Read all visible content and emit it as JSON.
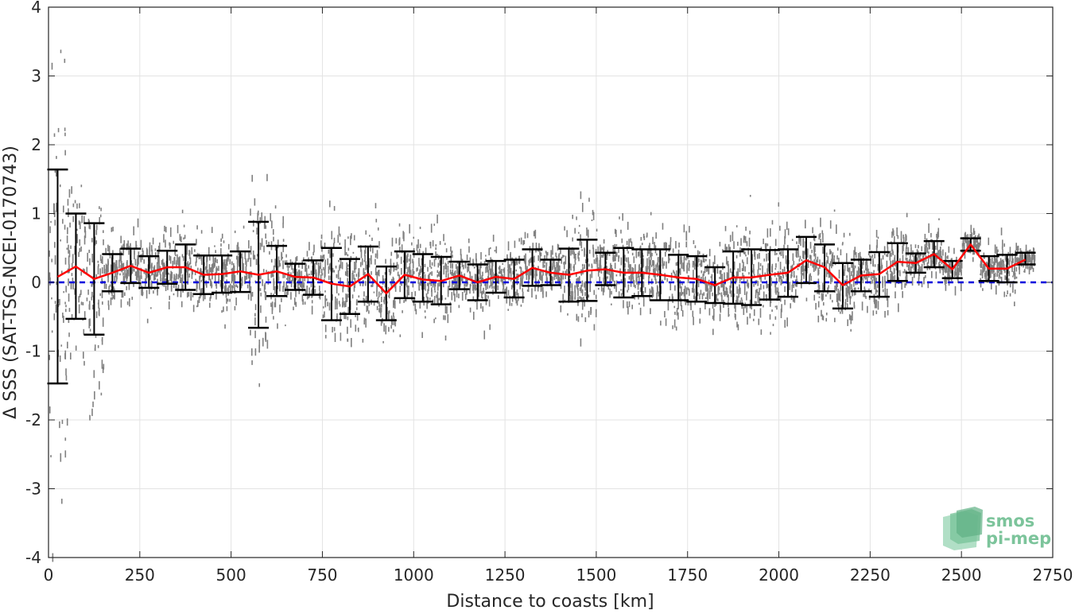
{
  "chart_data": {
    "type": "scatter",
    "xlabel": "Distance to coasts [km]",
    "ylabel": "Δ SSS (SAT-TSG-NCEI-0170743)",
    "xlim": [
      0,
      2750
    ],
    "ylim": [
      -4,
      4
    ],
    "xticks": [
      0,
      250,
      500,
      750,
      1000,
      1250,
      1500,
      1750,
      2000,
      2250,
      2500,
      2750
    ],
    "yticks": [
      -4,
      -3,
      -2,
      -1,
      0,
      1,
      2,
      3,
      4
    ],
    "grid": true,
    "reference_line": {
      "y": 0,
      "color": "#0000dd",
      "style": "dashed"
    },
    "scatter_color": "#808080",
    "mean_color": "#ff0000",
    "errorbar_color": "#000000",
    "bins": [
      {
        "x": 25,
        "mean": 0.08,
        "low": -1.47,
        "high": 1.64
      },
      {
        "x": 75,
        "mean": 0.23,
        "low": -0.53,
        "high": 1.0
      },
      {
        "x": 125,
        "mean": 0.05,
        "low": -0.76,
        "high": 0.86
      },
      {
        "x": 175,
        "mean": 0.14,
        "low": -0.13,
        "high": 0.41
      },
      {
        "x": 225,
        "mean": 0.24,
        "low": -0.01,
        "high": 0.49
      },
      {
        "x": 275,
        "mean": 0.14,
        "low": -0.08,
        "high": 0.38
      },
      {
        "x": 325,
        "mean": 0.22,
        "low": -0.02,
        "high": 0.46
      },
      {
        "x": 375,
        "mean": 0.22,
        "low": -0.11,
        "high": 0.55
      },
      {
        "x": 425,
        "mean": 0.11,
        "low": -0.17,
        "high": 0.39
      },
      {
        "x": 475,
        "mean": 0.12,
        "low": -0.15,
        "high": 0.39
      },
      {
        "x": 525,
        "mean": 0.16,
        "low": -0.14,
        "high": 0.45
      },
      {
        "x": 575,
        "mean": 0.11,
        "low": -0.66,
        "high": 0.88
      },
      {
        "x": 625,
        "mean": 0.16,
        "low": -0.2,
        "high": 0.53
      },
      {
        "x": 675,
        "mean": 0.08,
        "low": -0.11,
        "high": 0.27
      },
      {
        "x": 725,
        "mean": 0.07,
        "low": -0.18,
        "high": 0.32
      },
      {
        "x": 775,
        "mean": -0.02,
        "low": -0.55,
        "high": 0.5
      },
      {
        "x": 825,
        "mean": -0.06,
        "low": -0.46,
        "high": 0.34
      },
      {
        "x": 875,
        "mean": 0.12,
        "low": -0.28,
        "high": 0.52
      },
      {
        "x": 925,
        "mean": -0.16,
        "low": -0.55,
        "high": 0.23
      },
      {
        "x": 975,
        "mean": 0.11,
        "low": -0.23,
        "high": 0.45
      },
      {
        "x": 1025,
        "mean": 0.04,
        "low": -0.28,
        "high": 0.41
      },
      {
        "x": 1075,
        "mean": 0.02,
        "low": -0.32,
        "high": 0.37
      },
      {
        "x": 1125,
        "mean": 0.1,
        "low": -0.1,
        "high": 0.3
      },
      {
        "x": 1175,
        "mean": 0.0,
        "low": -0.26,
        "high": 0.26
      },
      {
        "x": 1225,
        "mean": 0.08,
        "low": -0.15,
        "high": 0.31
      },
      {
        "x": 1275,
        "mean": 0.05,
        "low": -0.22,
        "high": 0.33
      },
      {
        "x": 1325,
        "mean": 0.21,
        "low": -0.05,
        "high": 0.48
      },
      {
        "x": 1375,
        "mean": 0.14,
        "low": -0.04,
        "high": 0.33
      },
      {
        "x": 1425,
        "mean": 0.11,
        "low": -0.28,
        "high": 0.49
      },
      {
        "x": 1475,
        "mean": 0.17,
        "low": -0.27,
        "high": 0.62
      },
      {
        "x": 1525,
        "mean": 0.19,
        "low": -0.04,
        "high": 0.43
      },
      {
        "x": 1575,
        "mean": 0.14,
        "low": -0.22,
        "high": 0.5
      },
      {
        "x": 1625,
        "mean": 0.14,
        "low": -0.2,
        "high": 0.48
      },
      {
        "x": 1675,
        "mean": 0.11,
        "low": -0.26,
        "high": 0.48
      },
      {
        "x": 1725,
        "mean": 0.07,
        "low": -0.26,
        "high": 0.4
      },
      {
        "x": 1775,
        "mean": 0.05,
        "low": -0.28,
        "high": 0.38
      },
      {
        "x": 1825,
        "mean": -0.04,
        "low": -0.3,
        "high": 0.22
      },
      {
        "x": 1875,
        "mean": 0.07,
        "low": -0.31,
        "high": 0.45
      },
      {
        "x": 1925,
        "mean": 0.07,
        "low": -0.33,
        "high": 0.48
      },
      {
        "x": 1975,
        "mean": 0.11,
        "low": -0.25,
        "high": 0.47
      },
      {
        "x": 2025,
        "mean": 0.14,
        "low": -0.21,
        "high": 0.48
      },
      {
        "x": 2075,
        "mean": 0.32,
        "low": -0.01,
        "high": 0.66
      },
      {
        "x": 2125,
        "mean": 0.22,
        "low": -0.13,
        "high": 0.55
      },
      {
        "x": 2175,
        "mean": -0.04,
        "low": -0.38,
        "high": 0.28
      },
      {
        "x": 2225,
        "mean": 0.1,
        "low": -0.13,
        "high": 0.33
      },
      {
        "x": 2275,
        "mean": 0.12,
        "low": -0.21,
        "high": 0.44
      },
      {
        "x": 2325,
        "mean": 0.3,
        "low": 0.02,
        "high": 0.57
      },
      {
        "x": 2375,
        "mean": 0.28,
        "low": 0.14,
        "high": 0.42
      },
      {
        "x": 2425,
        "mean": 0.41,
        "low": 0.22,
        "high": 0.6
      },
      {
        "x": 2475,
        "mean": 0.19,
        "low": 0.06,
        "high": 0.31
      },
      {
        "x": 2525,
        "mean": 0.55,
        "low": 0.46,
        "high": 0.64
      },
      {
        "x": 2575,
        "mean": 0.2,
        "low": 0.02,
        "high": 0.38
      },
      {
        "x": 2625,
        "mean": 0.2,
        "low": 0.0,
        "high": 0.4
      },
      {
        "x": 2675,
        "mean": 0.33,
        "low": 0.26,
        "high": 0.43
      }
    ]
  },
  "logo": {
    "line1": "smos",
    "line2": "pi-mep",
    "color": "#7cc49b"
  }
}
